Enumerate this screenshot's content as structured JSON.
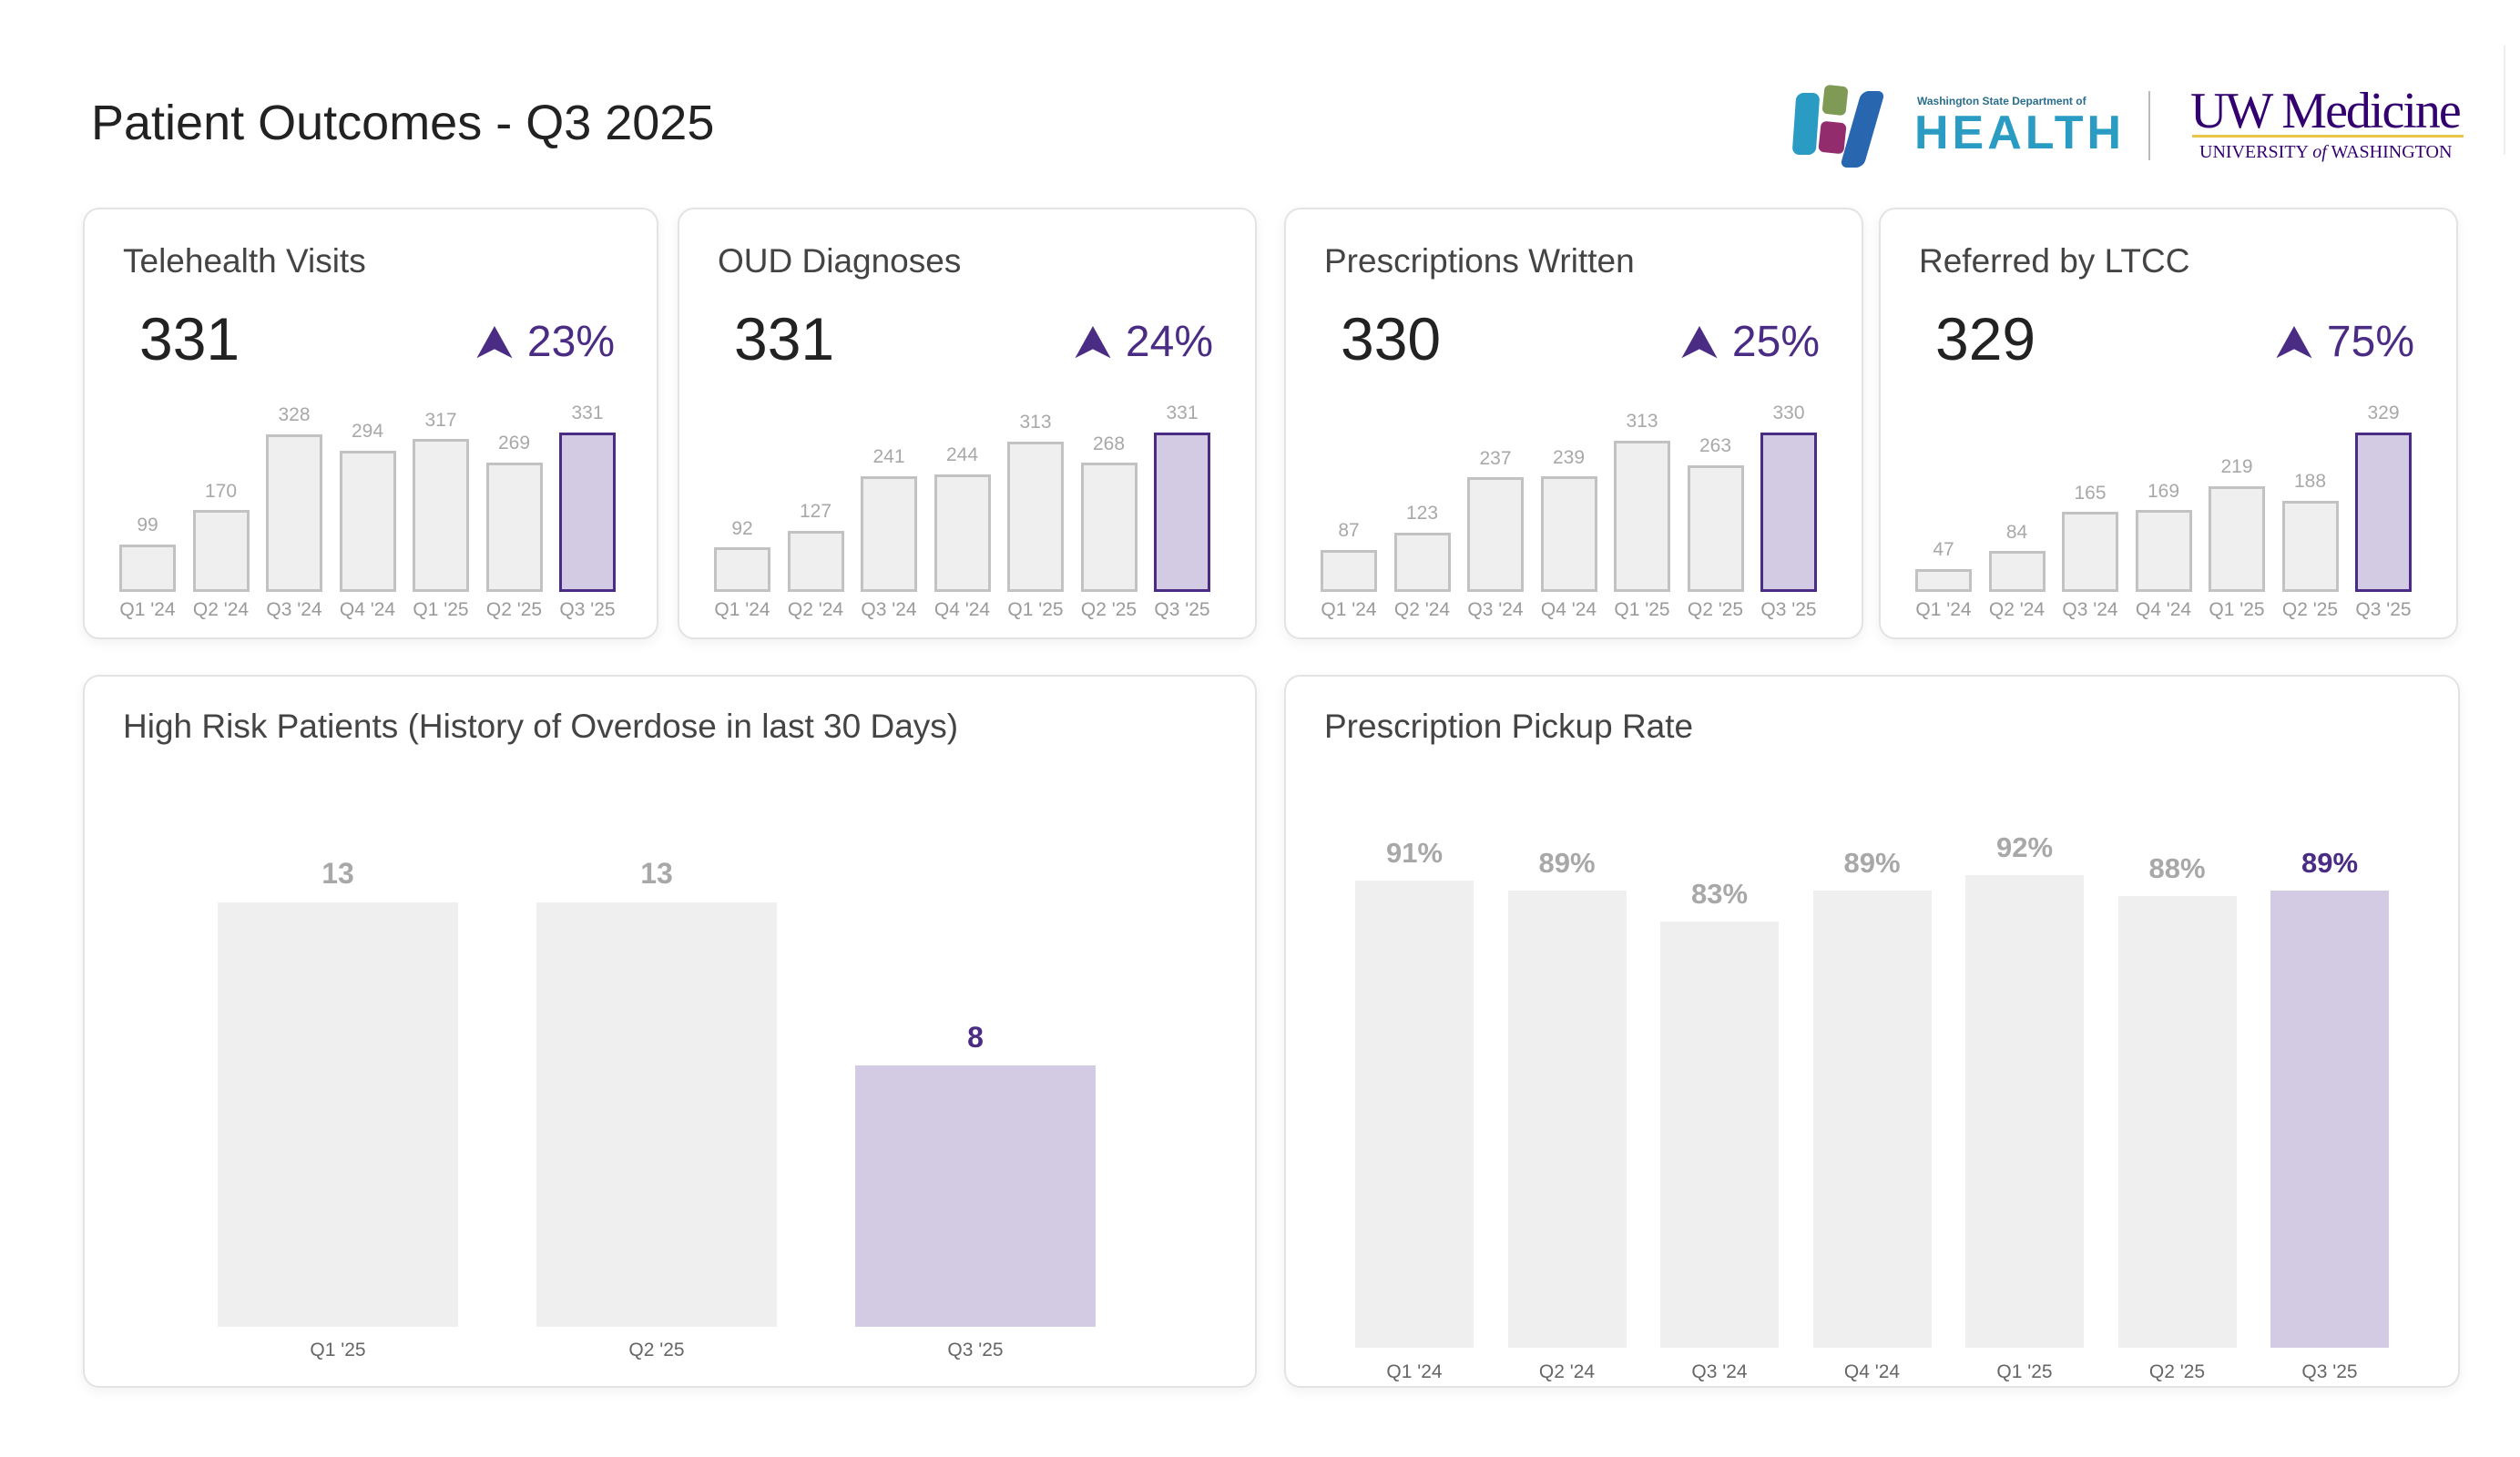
{
  "header": {
    "title": "Patient Outcomes - Q3 2025"
  },
  "logos": {
    "doh": {
      "small": "Washington State Department of",
      "big": "HEALTH"
    },
    "uw": {
      "main": "UW Medicine",
      "sub_a": "UNIVERSITY ",
      "sub_of": "of",
      "sub_b": " WASHINGTON"
    }
  },
  "colors": {
    "accent": "#4b2c85",
    "highlight_fill": "#d3cbe3",
    "bar_fill": "#efefef",
    "bar_border": "#c2c2c2",
    "label": "#a8a8a8"
  },
  "kpis": [
    {
      "title": "Telehealth Visits",
      "value": "331",
      "change": "23%",
      "trend_icon": "arrow-up-icon"
    },
    {
      "title": "OUD Diagnoses",
      "value": "331",
      "change": "24%",
      "trend_icon": "arrow-up-icon"
    },
    {
      "title": "Prescriptions Written",
      "value": "330",
      "change": "25%",
      "trend_icon": "arrow-up-icon"
    },
    {
      "title": "Referred by LTCC",
      "value": "329",
      "change": "75%",
      "trend_icon": "arrow-up-icon"
    }
  ],
  "panels": {
    "high_risk": {
      "title": "High Risk Patients (History of Overdose in last 30 Days)"
    },
    "pickup": {
      "title": "Prescription Pickup Rate"
    }
  },
  "chart_data": [
    {
      "type": "bar",
      "title": "Telehealth Visits",
      "categories": [
        "Q1 '24",
        "Q2 '24",
        "Q3 '24",
        "Q4 '24",
        "Q1 '25",
        "Q2 '25",
        "Q3 '25"
      ],
      "values": [
        99,
        170,
        328,
        294,
        317,
        269,
        331
      ],
      "highlight": "Q3 '25"
    },
    {
      "type": "bar",
      "title": "OUD Diagnoses",
      "categories": [
        "Q1 '24",
        "Q2 '24",
        "Q3 '24",
        "Q4 '24",
        "Q1 '25",
        "Q2 '25",
        "Q3 '25"
      ],
      "values": [
        92,
        127,
        241,
        244,
        313,
        268,
        331
      ],
      "highlight": "Q3 '25"
    },
    {
      "type": "bar",
      "title": "Prescriptions Written",
      "categories": [
        "Q1 '24",
        "Q2 '24",
        "Q3 '24",
        "Q4 '24",
        "Q1 '25",
        "Q2 '25",
        "Q3 '25"
      ],
      "values": [
        87,
        123,
        237,
        239,
        313,
        263,
        330
      ],
      "highlight": "Q3 '25"
    },
    {
      "type": "bar",
      "title": "Referred by LTCC",
      "categories": [
        "Q1 '24",
        "Q2 '24",
        "Q3 '24",
        "Q4 '24",
        "Q1 '25",
        "Q2 '25",
        "Q3 '25"
      ],
      "values": [
        47,
        84,
        165,
        169,
        219,
        188,
        329
      ],
      "highlight": "Q3 '25"
    },
    {
      "type": "bar",
      "title": "High Risk Patients (History of Overdose in last 30 Days)",
      "categories": [
        "Q1 '25",
        "Q2 '25",
        "Q3 '25"
      ],
      "values": [
        13,
        13,
        8
      ],
      "labels": [
        "13",
        "13",
        "8"
      ],
      "highlight": "Q3 '25"
    },
    {
      "type": "bar",
      "title": "Prescription Pickup Rate",
      "categories": [
        "Q1 '24",
        "Q2 '24",
        "Q3 '24",
        "Q4 '24",
        "Q1 '25",
        "Q2 '25",
        "Q3 '25"
      ],
      "values": [
        91,
        89,
        83,
        89,
        92,
        88,
        89
      ],
      "labels": [
        "91%",
        "89%",
        "83%",
        "89%",
        "92%",
        "88%",
        "89%"
      ],
      "unit": "%",
      "highlight": "Q3 '25"
    }
  ]
}
